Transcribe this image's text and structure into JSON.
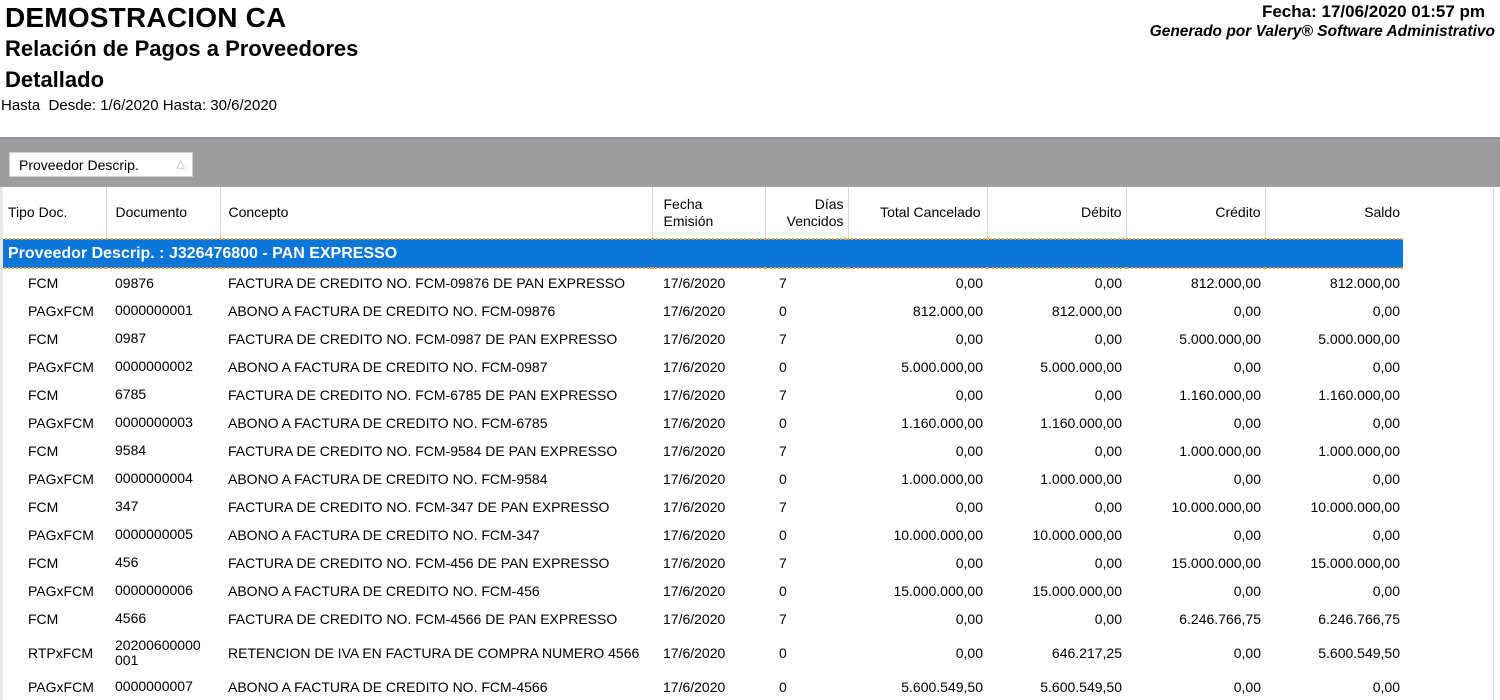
{
  "header": {
    "company": "DEMOSTRACION CA",
    "report_title": "Relación de Pagos a Proveedores",
    "report_subtitle": "Detallado",
    "range_line": "Hasta  Desde: 1/6/2020 Hasta: 30/6/2020",
    "fecha_line": "Fecha: 17/06/2020 01:57 pm",
    "generated_by": "Generado por Valery® Software Administrativo"
  },
  "group_bar": {
    "field_chip_label": "Proveedor Descrip.",
    "sort_icon_glyph": "△"
  },
  "table": {
    "columns": [
      "Tipo Doc.",
      "Documento",
      "Concepto",
      "Fecha\nEmisión",
      "Días\nVencidos",
      "Total Cancelado",
      "Débito",
      "Crédito",
      "Saldo"
    ],
    "group_header": "Proveedor Descrip. : J326476800 - PAN EXPRESSO",
    "rows": [
      {
        "tipo": "FCM",
        "doc": "09876",
        "concepto": "FACTURA DE CREDITO NO. FCM-09876 DE PAN EXPRESSO",
        "fecha": "17/6/2020",
        "dias": "7",
        "total": "0,00",
        "debito": "0,00",
        "credito": "812.000,00",
        "saldo": "812.000,00"
      },
      {
        "tipo": "PAGxFCM",
        "doc": "0000000001",
        "concepto": "ABONO A FACTURA DE CREDITO NO. FCM-09876",
        "fecha": "17/6/2020",
        "dias": "0",
        "total": "812.000,00",
        "debito": "812.000,00",
        "credito": "0,00",
        "saldo": "0,00"
      },
      {
        "tipo": "FCM",
        "doc": "0987",
        "concepto": "FACTURA DE CREDITO NO. FCM-0987 DE PAN EXPRESSO",
        "fecha": "17/6/2020",
        "dias": "7",
        "total": "0,00",
        "debito": "0,00",
        "credito": "5.000.000,00",
        "saldo": "5.000.000,00"
      },
      {
        "tipo": "PAGxFCM",
        "doc": "0000000002",
        "concepto": "ABONO A FACTURA DE CREDITO NO. FCM-0987",
        "fecha": "17/6/2020",
        "dias": "0",
        "total": "5.000.000,00",
        "debito": "5.000.000,00",
        "credito": "0,00",
        "saldo": "0,00"
      },
      {
        "tipo": "FCM",
        "doc": "6785",
        "concepto": "FACTURA DE CREDITO NO. FCM-6785 DE PAN EXPRESSO",
        "fecha": "17/6/2020",
        "dias": "7",
        "total": "0,00",
        "debito": "0,00",
        "credito": "1.160.000,00",
        "saldo": "1.160.000,00"
      },
      {
        "tipo": "PAGxFCM",
        "doc": "0000000003",
        "concepto": "ABONO A FACTURA DE CREDITO NO. FCM-6785",
        "fecha": "17/6/2020",
        "dias": "0",
        "total": "1.160.000,00",
        "debito": "1.160.000,00",
        "credito": "0,00",
        "saldo": "0,00"
      },
      {
        "tipo": "FCM",
        "doc": "9584",
        "concepto": "FACTURA DE CREDITO NO. FCM-9584 DE PAN EXPRESSO",
        "fecha": "17/6/2020",
        "dias": "7",
        "total": "0,00",
        "debito": "0,00",
        "credito": "1.000.000,00",
        "saldo": "1.000.000,00"
      },
      {
        "tipo": "PAGxFCM",
        "doc": "0000000004",
        "concepto": "ABONO A FACTURA DE CREDITO NO. FCM-9584",
        "fecha": "17/6/2020",
        "dias": "0",
        "total": "1.000.000,00",
        "debito": "1.000.000,00",
        "credito": "0,00",
        "saldo": "0,00"
      },
      {
        "tipo": "FCM",
        "doc": "347",
        "concepto": "FACTURA DE CREDITO NO. FCM-347 DE PAN EXPRESSO",
        "fecha": "17/6/2020",
        "dias": "7",
        "total": "0,00",
        "debito": "0,00",
        "credito": "10.000.000,00",
        "saldo": "10.000.000,00"
      },
      {
        "tipo": "PAGxFCM",
        "doc": "0000000005",
        "concepto": "ABONO A FACTURA DE CREDITO NO. FCM-347",
        "fecha": "17/6/2020",
        "dias": "0",
        "total": "10.000.000,00",
        "debito": "10.000.000,00",
        "credito": "0,00",
        "saldo": "0,00"
      },
      {
        "tipo": "FCM",
        "doc": "456",
        "concepto": "FACTURA DE CREDITO NO. FCM-456 DE PAN EXPRESSO",
        "fecha": "17/6/2020",
        "dias": "7",
        "total": "0,00",
        "debito": "0,00",
        "credito": "15.000.000,00",
        "saldo": "15.000.000,00"
      },
      {
        "tipo": "PAGxFCM",
        "doc": "0000000006",
        "concepto": "ABONO A FACTURA DE CREDITO NO. FCM-456",
        "fecha": "17/6/2020",
        "dias": "0",
        "total": "15.000.000,00",
        "debito": "15.000.000,00",
        "credito": "0,00",
        "saldo": "0,00"
      },
      {
        "tipo": "FCM",
        "doc": "4566",
        "concepto": "FACTURA DE CREDITO NO. FCM-4566 DE PAN EXPRESSO",
        "fecha": "17/6/2020",
        "dias": "7",
        "total": "0,00",
        "debito": "0,00",
        "credito": "6.246.766,75",
        "saldo": "6.246.766,75"
      },
      {
        "tipo": "RTPxFCM",
        "doc": "20200600000\n001",
        "concepto": "RETENCION DE IVA EN FACTURA DE COMPRA NUMERO 4566",
        "fecha": "17/6/2020",
        "dias": "0",
        "total": "0,00",
        "debito": "646.217,25",
        "credito": "0,00",
        "saldo": "5.600.549,50"
      },
      {
        "tipo": "PAGxFCM",
        "doc": "0000000007",
        "concepto": "ABONO A FACTURA DE CREDITO NO. FCM-4566",
        "fecha": "17/6/2020",
        "dias": "0",
        "total": "5.600.549,50",
        "debito": "5.600.549,50",
        "credito": "0,00",
        "saldo": "0,00"
      }
    ]
  },
  "colors": {
    "accent_blue": "#0a76d8",
    "band_gray": "#9d9d9d",
    "marquee_orange": "#f09d3a"
  }
}
